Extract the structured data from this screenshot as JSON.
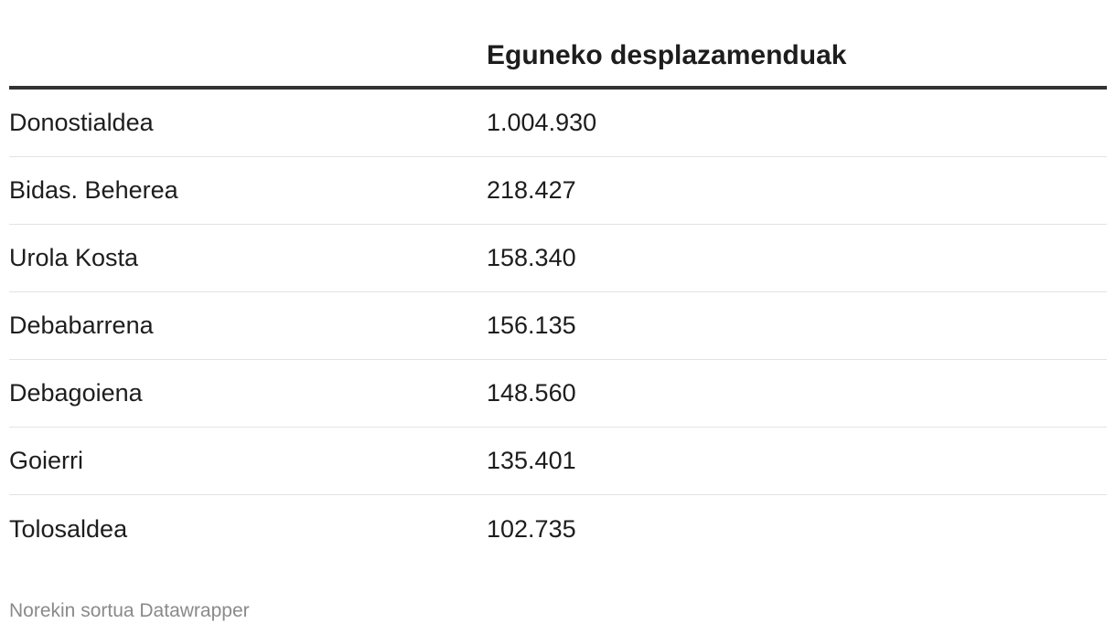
{
  "chart_data": {
    "type": "table",
    "columns": [
      "",
      "Eguneko desplazamenduak"
    ],
    "rows": [
      {
        "region": "Donostialdea",
        "value_label": "1.004.930"
      },
      {
        "region": "Bidas. Beherea",
        "value_label": "218.427"
      },
      {
        "region": "Urola Kosta",
        "value_label": "158.340"
      },
      {
        "region": "Debabarrena",
        "value_label": "156.135"
      },
      {
        "region": "Debagoiena",
        "value_label": "148.560"
      },
      {
        "region": "Goierri",
        "value_label": "135.401"
      },
      {
        "region": "Tolosaldea",
        "value_label": "102.735"
      }
    ],
    "values": [
      1004930,
      218427,
      158340,
      156135,
      148560,
      135401,
      102735
    ]
  },
  "footer": {
    "credit": "Norekin sortua Datawrapper"
  }
}
